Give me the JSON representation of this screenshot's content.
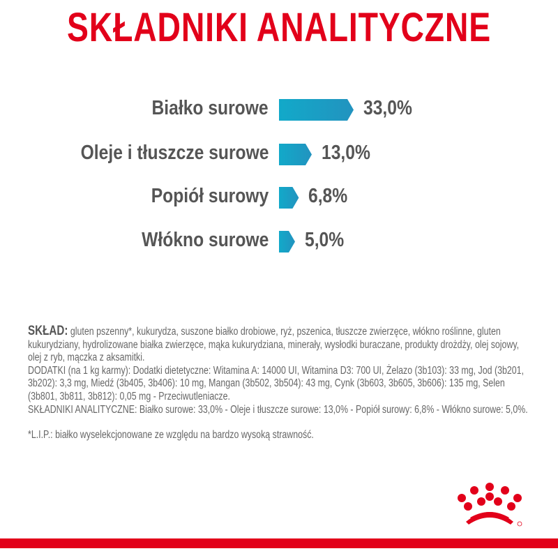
{
  "title": "SKŁADNIKI ANALITYCZNE",
  "colors": {
    "title": "#e2001a",
    "bar": "#17a6c7",
    "text": "#555555",
    "brand": "#e2001a"
  },
  "chart_data": {
    "type": "bar",
    "orientation": "horizontal",
    "categories": [
      "Białko surowe",
      "Oleje i tłuszcze surowe",
      "Popiół surowy",
      "Włókno surowe"
    ],
    "values": [
      33.0,
      13.0,
      6.8,
      5.0
    ],
    "value_labels": [
      "33,0%",
      "13,0%",
      "6,8%",
      "5,0%"
    ],
    "unit": "%"
  },
  "composition": {
    "sklad_label": "SKŁAD:",
    "sklad_text": "gluten pszenny*, kukurydza, suszone białko drobiowe, ryż, pszenica, tłuszcze zwierzęce, włókno roślinne, gluten kukurydziany, hydrolizowane białka zwierzęce, mąka kukurydziana, minerały, wysłodki buraczane, produkty drożdży, olej sojowy, olej z ryb, mączka z aksamitki.",
    "dodatki": "DODATKI (na 1 kg karmy): Dodatki dietetyczne: Witamina A: 14000 UI, Witamina D3: 700 UI, Żelazo (3b103): 33 mg, Jod (3b201, 3b202): 3,3 mg, Miedź (3b405, 3b406): 10 mg, Mangan (3b502, 3b504): 43 mg, Cynk (3b603, 3b605, 3b606): 135 mg, Selen (3b801, 3b811, 3b812): 0,05 mg - Przeciwutleniacze.",
    "analytical": "SKŁADNIKI ANALITYCZNE: Białko surowe: 33,0% - Oleje i tłuszcze surowe: 13,0% - Popiół surowy: 6,8% - Włókno surowe: 5,0%.",
    "footnote": "*L.I.P.: białko wyselekcjonowane ze względu na bardzo wysoką strawność."
  },
  "logo": {
    "name": "royal-canin-crown-icon"
  }
}
